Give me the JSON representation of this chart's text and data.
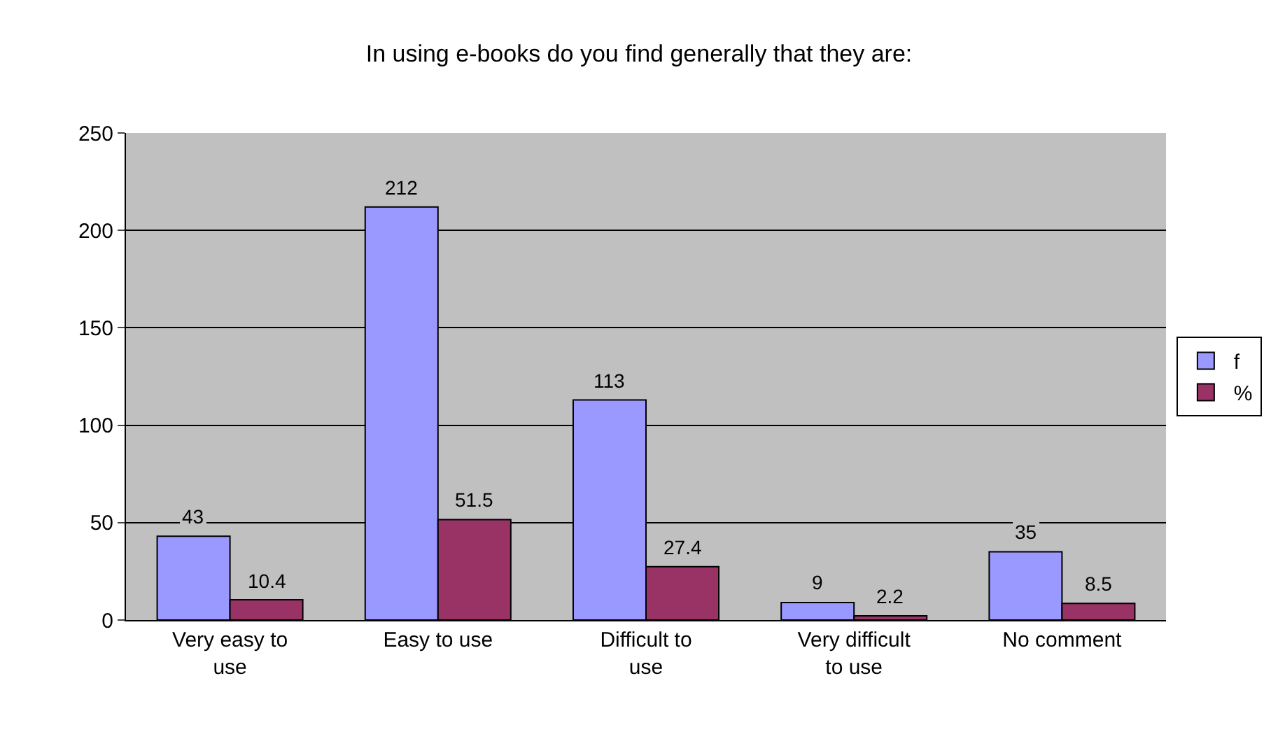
{
  "chart_data": {
    "type": "bar",
    "title": "In using e-books do you find generally that they are:",
    "categories": [
      "Very easy to use",
      "Easy to use",
      "Difficult to use",
      "Very difficult to use",
      "No comment"
    ],
    "series": [
      {
        "name": "f",
        "color": "#9999ff",
        "values": [
          43,
          212,
          113,
          9,
          35
        ]
      },
      {
        "name": "%",
        "color": "#993366",
        "values": [
          10.4,
          51.5,
          27.4,
          2.2,
          8.5
        ]
      }
    ],
    "ylim": [
      0,
      250
    ],
    "yticks": [
      0,
      50,
      100,
      150,
      200,
      250
    ],
    "grid": "y",
    "legend": "right",
    "data_labels": true
  }
}
